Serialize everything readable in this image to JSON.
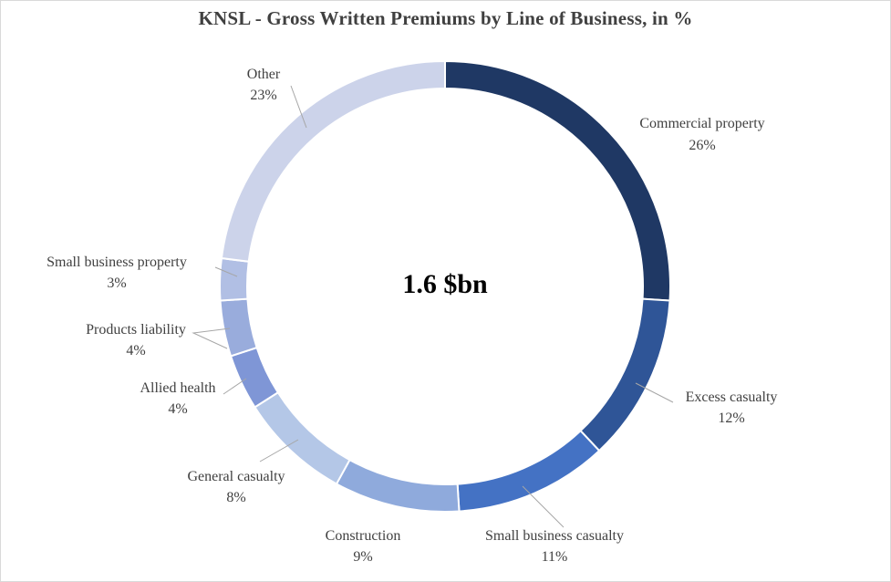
{
  "chart_data": {
    "type": "pie",
    "subtype": "donut",
    "title": "KNSL - Gross Written Premiums by Line of Business, in %",
    "center_label": "1.6 $bn",
    "categories": [
      "Commercial property",
      "Excess casualty",
      "Small business casualty",
      "Construction",
      "General casualty",
      "Allied health",
      "Products liability",
      "Small business property",
      "Other"
    ],
    "values": [
      26,
      12,
      11,
      9,
      8,
      4,
      4,
      3,
      23
    ],
    "value_labels": [
      "26%",
      "12%",
      "11%",
      "9%",
      "8%",
      "4%",
      "4%",
      "3%",
      "23%"
    ],
    "colors": [
      "#1f3864",
      "#2f5597",
      "#4472c4",
      "#8faadc",
      "#b4c7e7",
      "#7f96d6",
      "#99acdc",
      "#b1bfe4",
      "#ccd3ea"
    ],
    "legend": "none"
  }
}
